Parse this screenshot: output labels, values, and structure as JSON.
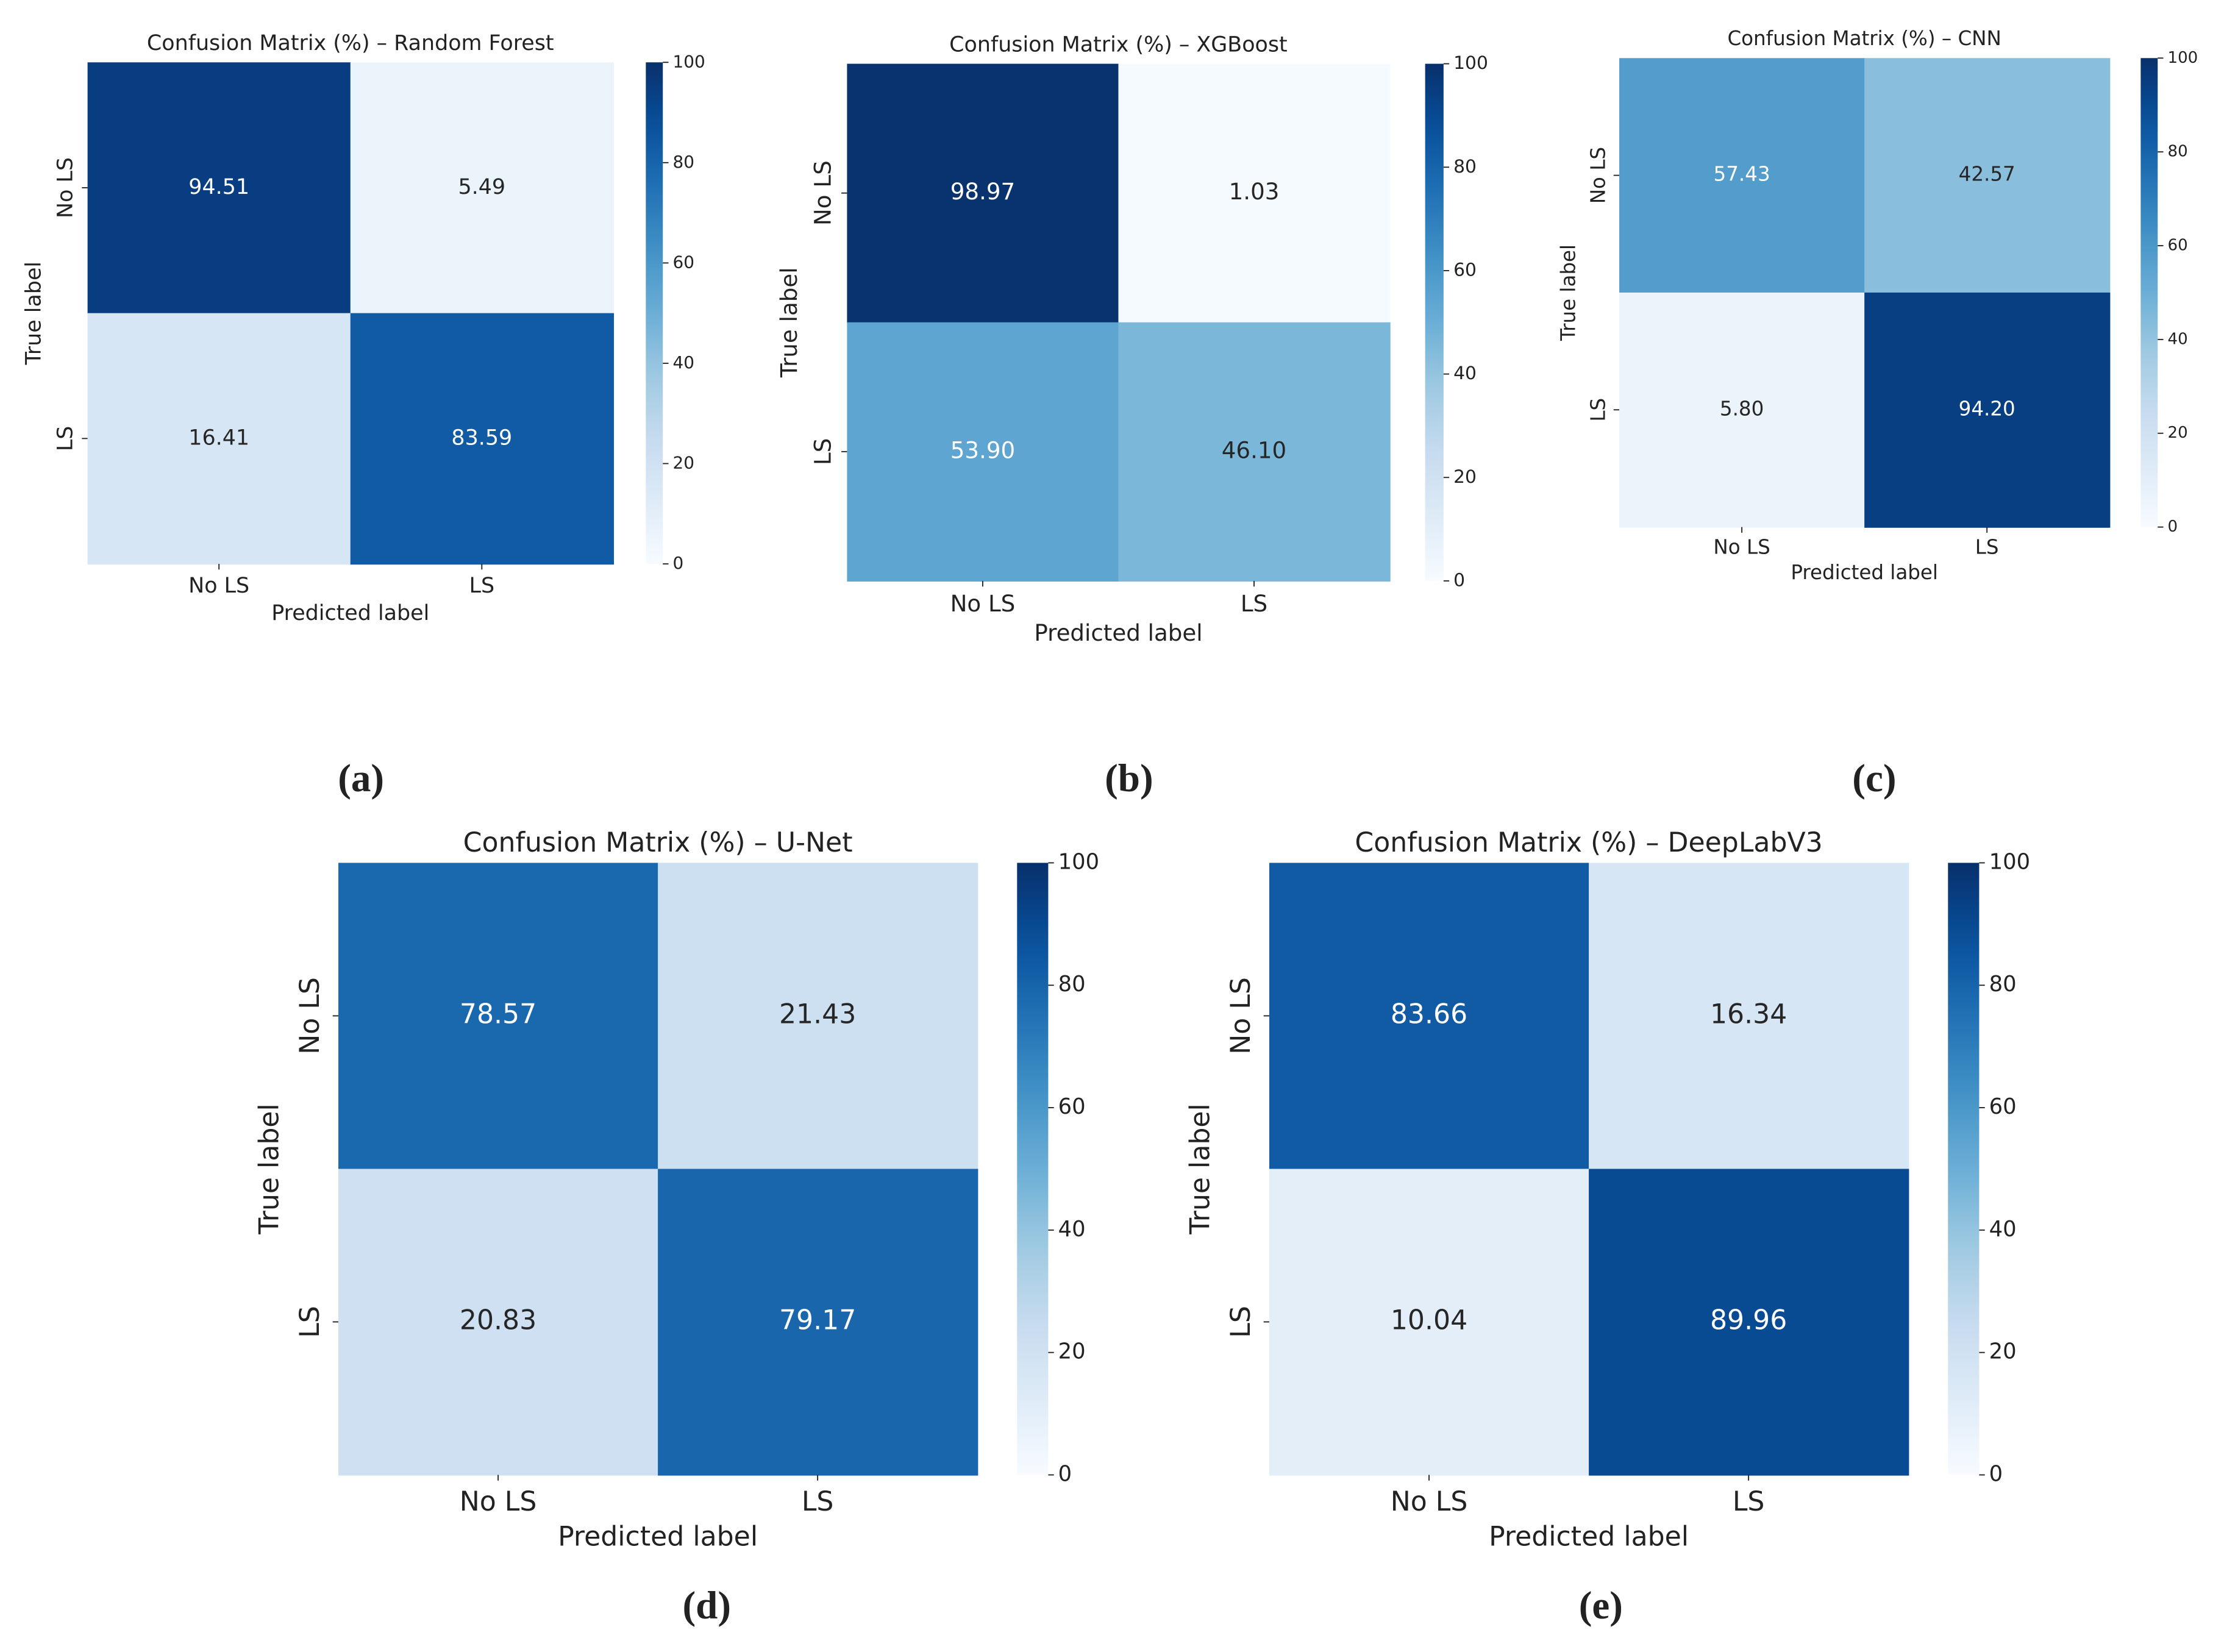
{
  "chart_data": [
    {
      "type": "heatmap",
      "title": "Confusion Matrix (%) – Random Forest",
      "x_label": "Predicted label",
      "y_label": "True label",
      "x_categories": [
        "No LS",
        "LS"
      ],
      "y_categories": [
        "No LS",
        "LS"
      ],
      "values": [
        [
          94.51,
          5.49
        ],
        [
          16.41,
          83.59
        ]
      ],
      "value_labels": [
        [
          "94.51",
          "5.49"
        ],
        [
          "16.41",
          "83.59"
        ]
      ],
      "colormap": "Blues",
      "zlim": [
        0,
        100
      ],
      "zticks": [
        0,
        20,
        40,
        60,
        80,
        100
      ],
      "panel_label": "(a)"
    },
    {
      "type": "heatmap",
      "title": "Confusion Matrix (%) – XGBoost",
      "x_label": "Predicted label",
      "y_label": "True label",
      "x_categories": [
        "No LS",
        "LS"
      ],
      "y_categories": [
        "No LS",
        "LS"
      ],
      "values": [
        [
          98.97,
          1.03
        ],
        [
          53.9,
          46.1
        ]
      ],
      "value_labels": [
        [
          "98.97",
          "1.03"
        ],
        [
          "53.90",
          "46.10"
        ]
      ],
      "colormap": "Blues",
      "zlim": [
        0,
        100
      ],
      "zticks": [
        0,
        20,
        40,
        60,
        80,
        100
      ],
      "panel_label": "(b)"
    },
    {
      "type": "heatmap",
      "title": "Confusion Matrix (%) – CNN",
      "x_label": "Predicted label",
      "y_label": "True label",
      "x_categories": [
        "No LS",
        "LS"
      ],
      "y_categories": [
        "No LS",
        "LS"
      ],
      "values": [
        [
          57.43,
          42.57
        ],
        [
          5.8,
          94.2
        ]
      ],
      "value_labels": [
        [
          "57.43",
          "42.57"
        ],
        [
          "5.80",
          "94.20"
        ]
      ],
      "colormap": "Blues",
      "zlim": [
        0,
        100
      ],
      "zticks": [
        0,
        20,
        40,
        60,
        80,
        100
      ],
      "panel_label": "(c)"
    },
    {
      "type": "heatmap",
      "title": "Confusion Matrix (%) – U-Net",
      "x_label": "Predicted label",
      "y_label": "True label",
      "x_categories": [
        "No LS",
        "LS"
      ],
      "y_categories": [
        "No LS",
        "LS"
      ],
      "values": [
        [
          78.57,
          21.43
        ],
        [
          20.83,
          79.17
        ]
      ],
      "value_labels": [
        [
          "78.57",
          "21.43"
        ],
        [
          "20.83",
          "79.17"
        ]
      ],
      "colormap": "Blues",
      "zlim": [
        0,
        100
      ],
      "zticks": [
        0,
        20,
        40,
        60,
        80,
        100
      ],
      "panel_label": "(d)"
    },
    {
      "type": "heatmap",
      "title": "Confusion Matrix (%) – DeepLabV3",
      "x_label": "Predicted label",
      "y_label": "True label",
      "x_categories": [
        "No LS",
        "LS"
      ],
      "y_categories": [
        "No LS",
        "LS"
      ],
      "values": [
        [
          83.66,
          16.34
        ],
        [
          10.04,
          89.96
        ]
      ],
      "value_labels": [
        [
          "83.66",
          "16.34"
        ],
        [
          "10.04",
          "89.96"
        ]
      ],
      "colormap": "Blues",
      "zlim": [
        0,
        100
      ],
      "zticks": [
        0,
        20,
        40,
        60,
        80,
        100
      ],
      "panel_label": "(e)"
    }
  ]
}
